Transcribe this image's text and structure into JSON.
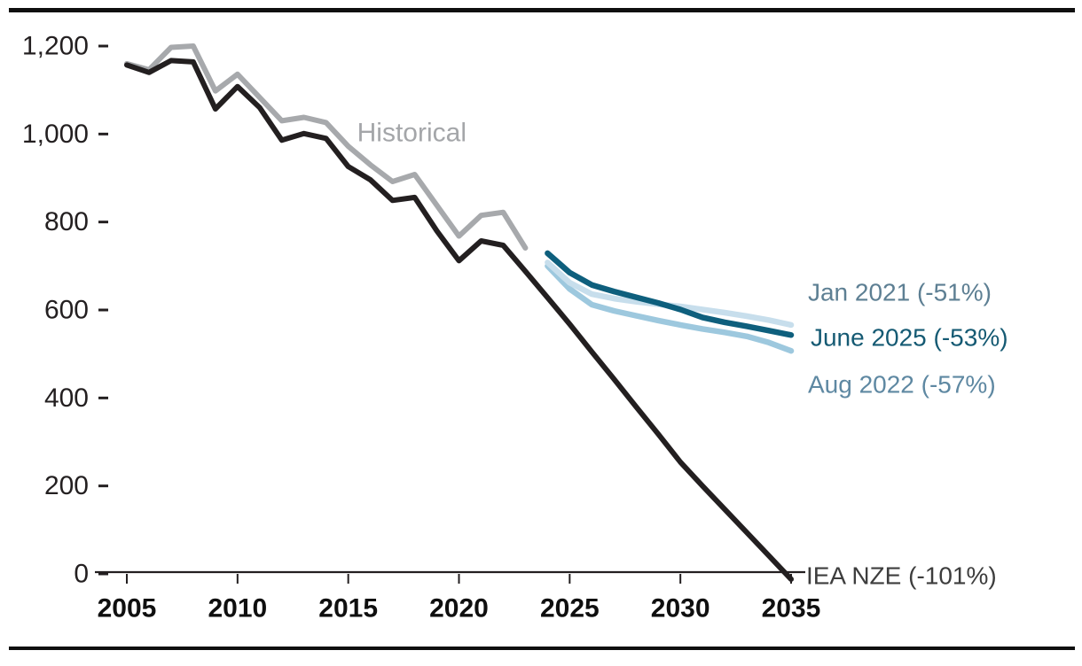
{
  "chart_data": {
    "type": "line",
    "title": "",
    "xlabel": "",
    "ylabel": "",
    "xlim": [
      2005,
      2035
    ],
    "ylim": [
      0,
      1200
    ],
    "grid": false,
    "legend": "inline-line-labels",
    "xtick_values": [
      2005,
      2010,
      2015,
      2020,
      2025,
      2030,
      2035
    ],
    "xtick_labels": [
      "2005",
      "2010",
      "2015",
      "2020",
      "2025",
      "2030",
      "2035"
    ],
    "ytick_values": [
      0,
      200,
      400,
      600,
      800,
      1000,
      1200
    ],
    "ytick_labels": [
      "0",
      "200",
      "400",
      "600",
      "800",
      "1,000",
      "1,200"
    ],
    "axis": {
      "color": "#231f20",
      "tick_label_color": "#231f20",
      "x_label_color": "#0f0f0f"
    },
    "series": [
      {
        "name": "Historical",
        "color": "#a7a9ac",
        "stroke_width": 6,
        "points": [
          [
            2005,
            1160
          ],
          [
            2006,
            1146
          ],
          [
            2007,
            1197
          ],
          [
            2008,
            1200
          ],
          [
            2009,
            1098
          ],
          [
            2010,
            1136
          ],
          [
            2011,
            1083
          ],
          [
            2012,
            1030
          ],
          [
            2013,
            1038
          ],
          [
            2014,
            1026
          ],
          [
            2015,
            972
          ],
          [
            2016,
            930
          ],
          [
            2017,
            892
          ],
          [
            2018,
            908
          ],
          [
            2019,
            838
          ],
          [
            2020,
            768
          ],
          [
            2021,
            815
          ],
          [
            2022,
            822
          ],
          [
            2023,
            741
          ]
        ]
      },
      {
        "name": "IEA NZE",
        "color": "#231f20",
        "stroke_width": 6,
        "points": [
          [
            2005,
            1157
          ],
          [
            2006,
            1140
          ],
          [
            2007,
            1167
          ],
          [
            2008,
            1164
          ],
          [
            2009,
            1057
          ],
          [
            2010,
            1108
          ],
          [
            2011,
            1060
          ],
          [
            2012,
            986
          ],
          [
            2013,
            1001
          ],
          [
            2014,
            990
          ],
          [
            2015,
            926
          ],
          [
            2016,
            896
          ],
          [
            2017,
            849
          ],
          [
            2018,
            856
          ],
          [
            2019,
            780
          ],
          [
            2020,
            712
          ],
          [
            2021,
            757
          ],
          [
            2022,
            747
          ],
          [
            2023,
            688
          ],
          [
            2024,
            628
          ],
          [
            2025,
            568
          ],
          [
            2026,
            505
          ],
          [
            2027,
            443
          ],
          [
            2028,
            380
          ],
          [
            2029,
            318
          ],
          [
            2030,
            254
          ],
          [
            2031,
            200
          ],
          [
            2032,
            147
          ],
          [
            2033,
            94
          ],
          [
            2034,
            41
          ],
          [
            2035,
            -12
          ]
        ]
      },
      {
        "name": "Aug 2022",
        "color": "#9dc8de",
        "stroke_width": 6.5,
        "points": [
          [
            2024,
            700
          ],
          [
            2025,
            648
          ],
          [
            2026,
            612
          ],
          [
            2027,
            598
          ],
          [
            2028,
            587
          ],
          [
            2029,
            576
          ],
          [
            2030,
            566
          ],
          [
            2031,
            557
          ],
          [
            2032,
            549
          ],
          [
            2033,
            540
          ],
          [
            2034,
            526
          ],
          [
            2035,
            507
          ]
        ]
      },
      {
        "name": "Jan 2021",
        "color": "#c7deec",
        "stroke_width": 6.5,
        "points": [
          [
            2024,
            708
          ],
          [
            2025,
            662
          ],
          [
            2026,
            636
          ],
          [
            2027,
            626
          ],
          [
            2028,
            619
          ],
          [
            2029,
            613
          ],
          [
            2030,
            608
          ],
          [
            2031,
            601
          ],
          [
            2032,
            594
          ],
          [
            2033,
            586
          ],
          [
            2034,
            577
          ],
          [
            2035,
            566
          ]
        ]
      },
      {
        "name": "June 2025",
        "color": "#0e5f7d",
        "stroke_width": 6.5,
        "points": [
          [
            2024,
            729
          ],
          [
            2025,
            685
          ],
          [
            2026,
            657
          ],
          [
            2027,
            642
          ],
          [
            2028,
            629
          ],
          [
            2029,
            616
          ],
          [
            2030,
            601
          ],
          [
            2031,
            583
          ],
          [
            2032,
            572
          ],
          [
            2033,
            563
          ],
          [
            2034,
            553
          ],
          [
            2035,
            543
          ]
        ]
      }
    ],
    "annotations": [
      {
        "name": "historical-label",
        "text": "Historical",
        "x": 2015.4,
        "value": 1003,
        "color": "#a4a6a9",
        "size": 30
      },
      {
        "name": "jan-2021-label",
        "text": "Jan 2021 (-51%)",
        "x": 2035.76,
        "value": 640,
        "color": "#5d7f93",
        "size": 28
      },
      {
        "name": "june-2025-label",
        "text": "June 2025 (-53%)",
        "x": 2035.88,
        "value": 538,
        "color": "#155a73",
        "size": 28
      },
      {
        "name": "aug-2022-label",
        "text": "Aug 2022 (-57%)",
        "x": 2035.76,
        "value": 431,
        "color": "#5e88a2",
        "size": 28
      },
      {
        "name": "iea-nze-label",
        "text": "IEA NZE (-101%)",
        "x": 2035.68,
        "value": -4,
        "color": "#3d3d3d",
        "size": 28
      }
    ]
  },
  "decorations": {
    "background": "#ffffff",
    "top_rule_color": "#0f0f0f",
    "bottom_rule_color": "#0f0f0f"
  }
}
